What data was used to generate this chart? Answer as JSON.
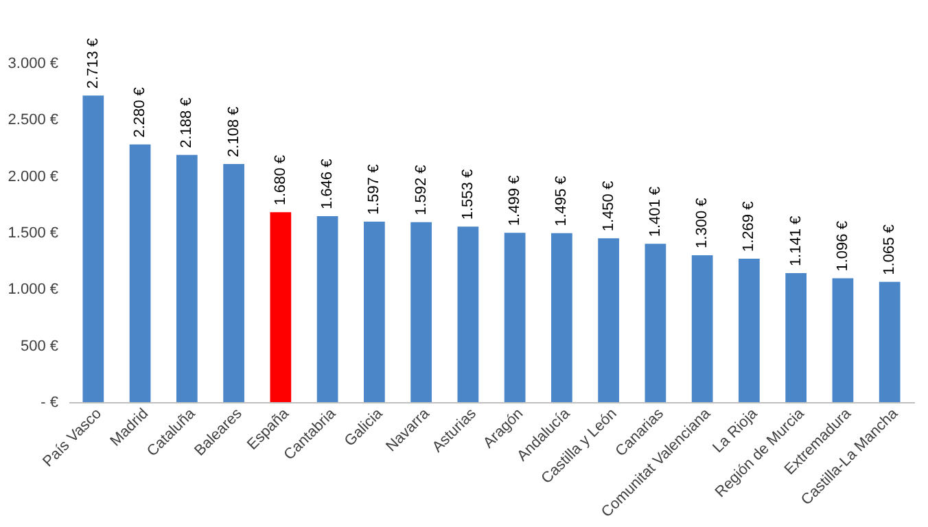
{
  "chart_data": {
    "type": "bar",
    "categories": [
      "País Vasco",
      "Madrid",
      "Cataluña",
      "Baleares",
      "España",
      "Cantabria",
      "Galicia",
      "Navarra",
      "Asturias",
      "Aragón",
      "Andalucía",
      "Castilla y León",
      "Canarias",
      "Comunitat Valenciana",
      "La Rioja",
      "Región de Murcia",
      "Extremadura",
      "Castilla-La Mancha"
    ],
    "values": [
      2713,
      2280,
      2188,
      2108,
      1680,
      1646,
      1597,
      1592,
      1553,
      1499,
      1495,
      1450,
      1401,
      1300,
      1269,
      1141,
      1096,
      1065
    ],
    "colors": [
      "#4a86c8",
      "#4a86c8",
      "#4a86c8",
      "#4a86c8",
      "#ff0000",
      "#4a86c8",
      "#4a86c8",
      "#4a86c8",
      "#4a86c8",
      "#4a86c8",
      "#4a86c8",
      "#4a86c8",
      "#4a86c8",
      "#4a86c8",
      "#4a86c8",
      "#4a86c8",
      "#4a86c8",
      "#4a86c8"
    ],
    "value_labels": [
      "2.713 €",
      "2.280 €",
      "2.188 €",
      "2.108 €",
      "1.680 €",
      "1.646 €",
      "1.597 €",
      "1.592 €",
      "1.553 €",
      "1.499 €",
      "1.495 €",
      "1.450 €",
      "1.401 €",
      "1.300 €",
      "1.269 €",
      "1.141 €",
      "1.096 €",
      "1.065 €"
    ],
    "ylim": [
      0,
      3000
    ],
    "yticks": [
      {
        "value": 0,
        "label": "-  €"
      },
      {
        "value": 500,
        "label": "500 €"
      },
      {
        "value": 1000,
        "label": "1.000 €"
      },
      {
        "value": 1500,
        "label": "1.500 €"
      },
      {
        "value": 2000,
        "label": "2.000 €"
      },
      {
        "value": 2500,
        "label": "2.500 €"
      },
      {
        "value": 3000,
        "label": "3.000 €"
      }
    ],
    "grid": false,
    "legend": false
  }
}
